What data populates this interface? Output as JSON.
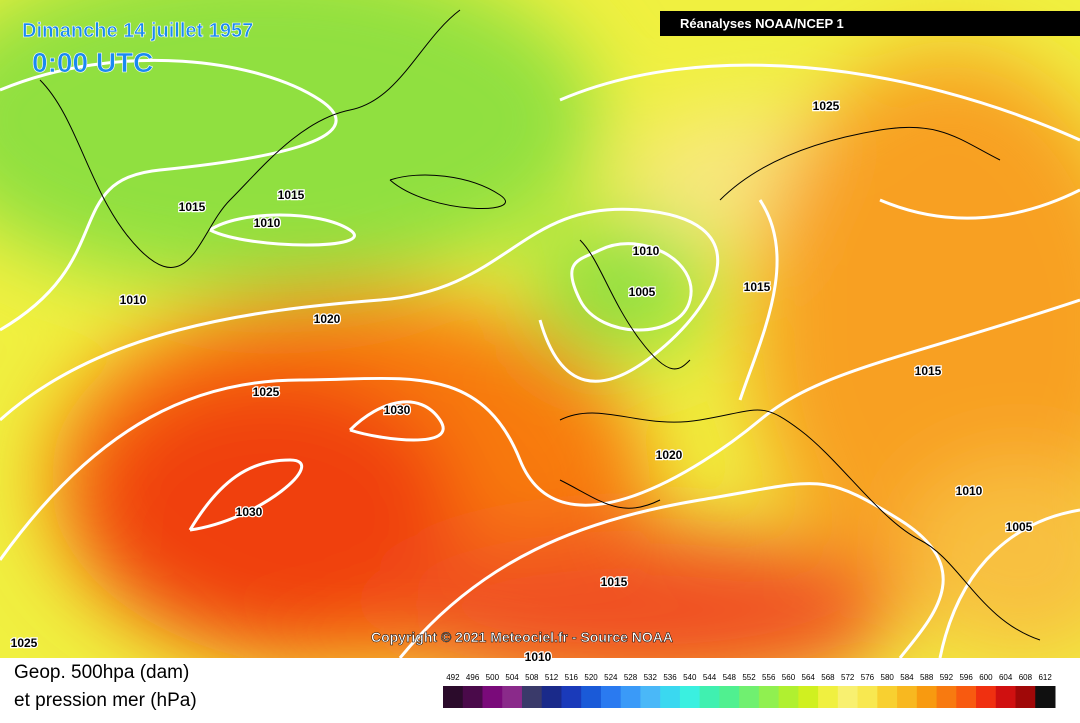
{
  "header": {
    "title": "Dimanche 14 juillet 1957",
    "time": "0:00 UTC",
    "source": "Réanalyses NOAA/NCEP 1"
  },
  "isobars": [
    "1025",
    "1015",
    "1015",
    "1010",
    "1010",
    "1010",
    "1005",
    "1015",
    "1020",
    "1025",
    "1030",
    "1015",
    "1020",
    "1030",
    "1010",
    "1005",
    "1015",
    "1025",
    "1010"
  ],
  "copyright": "Copyright © 2021 Meteociel.fr - Source NOAA",
  "legend": {
    "line1": "Geop. 500hpa (dam)",
    "line2": "et pression mer (hPa)"
  },
  "colorbar": {
    "ticks": [
      492,
      496,
      500,
      504,
      508,
      512,
      516,
      520,
      524,
      528,
      532,
      536,
      540,
      544,
      548,
      552,
      556,
      560,
      564,
      568,
      572,
      576,
      580,
      584,
      588,
      592,
      596,
      600,
      604,
      608,
      612
    ],
    "colors": [
      "#2b0b2b",
      "#4a0a4a",
      "#7a0a7a",
      "#8a2a8a",
      "#3a3a6a",
      "#1a2a8a",
      "#1a3aba",
      "#1a5ad8",
      "#2a7af0",
      "#3a9af8",
      "#4ab8f8",
      "#3ad8f0",
      "#3af0e0",
      "#40f0b0",
      "#50f090",
      "#70f070",
      "#90f050",
      "#b0f030",
      "#d0f020",
      "#f0f040",
      "#f8f070",
      "#f8e850",
      "#f8d030",
      "#f8b820",
      "#f89a10",
      "#f87a10",
      "#f85a10",
      "#f03010",
      "#d01010",
      "#a00808",
      "#101010"
    ]
  }
}
